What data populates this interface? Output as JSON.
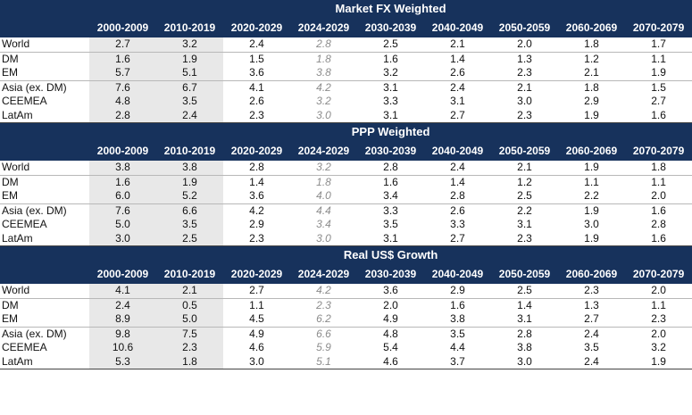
{
  "chart_data": [
    {
      "type": "table",
      "title": "Market FX Weighted",
      "columns": [
        "2000-2009",
        "2010-2019",
        "2020-2029",
        "2024-2029",
        "2030-2039",
        "2040-2049",
        "2050-2059",
        "2060-2069",
        "2070-2079"
      ],
      "rows": [
        {
          "label": "World",
          "values": [
            "2.7",
            "3.2",
            "2.4",
            "2.8",
            "2.5",
            "2.1",
            "2.0",
            "1.8",
            "1.7"
          ]
        },
        {
          "label": "DM",
          "values": [
            "1.6",
            "1.9",
            "1.5",
            "1.8",
            "1.6",
            "1.4",
            "1.3",
            "1.2",
            "1.1"
          ]
        },
        {
          "label": "EM",
          "values": [
            "5.7",
            "5.1",
            "3.6",
            "3.8",
            "3.2",
            "2.6",
            "2.3",
            "2.1",
            "1.9"
          ]
        },
        {
          "label": "Asia (ex. DM)",
          "values": [
            "7.6",
            "6.7",
            "4.1",
            "4.2",
            "3.1",
            "2.4",
            "2.1",
            "1.8",
            "1.5"
          ]
        },
        {
          "label": "CEEMEA",
          "values": [
            "4.8",
            "3.5",
            "2.6",
            "3.2",
            "3.3",
            "3.1",
            "3.0",
            "2.9",
            "2.7"
          ]
        },
        {
          "label": "LatAm",
          "values": [
            "2.8",
            "2.4",
            "2.3",
            "3.0",
            "3.1",
            "2.7",
            "2.3",
            "1.9",
            "1.6"
          ]
        }
      ]
    },
    {
      "type": "table",
      "title": "PPP Weighted",
      "columns": [
        "2000-2009",
        "2010-2019",
        "2020-2029",
        "2024-2029",
        "2030-2039",
        "2040-2049",
        "2050-2059",
        "2060-2069",
        "2070-2079"
      ],
      "rows": [
        {
          "label": "World",
          "values": [
            "3.8",
            "3.8",
            "2.8",
            "3.2",
            "2.8",
            "2.4",
            "2.1",
            "1.9",
            "1.8"
          ]
        },
        {
          "label": "DM",
          "values": [
            "1.6",
            "1.9",
            "1.4",
            "1.8",
            "1.6",
            "1.4",
            "1.2",
            "1.1",
            "1.1"
          ]
        },
        {
          "label": "EM",
          "values": [
            "6.0",
            "5.2",
            "3.6",
            "4.0",
            "3.4",
            "2.8",
            "2.5",
            "2.2",
            "2.0"
          ]
        },
        {
          "label": "Asia (ex. DM)",
          "values": [
            "7.6",
            "6.6",
            "4.2",
            "4.4",
            "3.3",
            "2.6",
            "2.2",
            "1.9",
            "1.6"
          ]
        },
        {
          "label": "CEEMEA",
          "values": [
            "5.0",
            "3.5",
            "2.9",
            "3.4",
            "3.5",
            "3.3",
            "3.1",
            "3.0",
            "2.8"
          ]
        },
        {
          "label": "LatAm",
          "values": [
            "3.0",
            "2.5",
            "2.3",
            "3.0",
            "3.1",
            "2.7",
            "2.3",
            "1.9",
            "1.6"
          ]
        }
      ]
    },
    {
      "type": "table",
      "title": "Real US$ Growth",
      "columns": [
        "2000-2009",
        "2010-2019",
        "2020-2029",
        "2024-2029",
        "2030-2039",
        "2040-2049",
        "2050-2059",
        "2060-2069",
        "2070-2079"
      ],
      "rows": [
        {
          "label": "World",
          "values": [
            "4.1",
            "2.1",
            "2.7",
            "4.2",
            "3.6",
            "2.9",
            "2.5",
            "2.3",
            "2.0"
          ]
        },
        {
          "label": "DM",
          "values": [
            "2.4",
            "0.5",
            "1.1",
            "2.3",
            "2.0",
            "1.6",
            "1.4",
            "1.3",
            "1.1"
          ]
        },
        {
          "label": "EM",
          "values": [
            "8.9",
            "5.0",
            "4.5",
            "6.2",
            "4.9",
            "3.8",
            "3.1",
            "2.7",
            "2.3"
          ]
        },
        {
          "label": "Asia (ex. DM)",
          "values": [
            "9.8",
            "7.5",
            "4.9",
            "6.6",
            "4.8",
            "3.5",
            "2.8",
            "2.4",
            "2.0"
          ]
        },
        {
          "label": "CEEMEA",
          "values": [
            "10.6",
            "2.3",
            "4.6",
            "5.9",
            "5.4",
            "4.4",
            "3.8",
            "3.5",
            "3.2"
          ]
        },
        {
          "label": "LatAm",
          "values": [
            "5.3",
            "1.8",
            "3.0",
            "5.1",
            "4.6",
            "3.7",
            "3.0",
            "2.4",
            "1.9"
          ]
        }
      ]
    }
  ],
  "colors": {
    "header_bg": "#17325c",
    "shaded_column_bg": "#e8e8e8",
    "projection_text": "#8c8c8c"
  }
}
